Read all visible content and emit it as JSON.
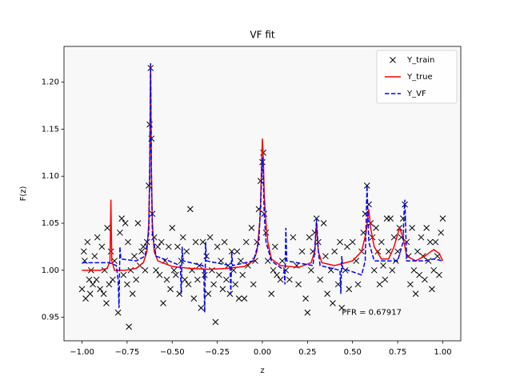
{
  "chart_data": {
    "type": "line",
    "title": "VF fit",
    "x_label": "z",
    "y_label": "F(z)",
    "annotation": "PFR = 0.67917",
    "annotation_pos": [
      0.44,
      0.955
    ],
    "xlim": [
      -1.1,
      1.1
    ],
    "ylim": [
      0.925,
      1.238
    ],
    "xticks": [
      {
        "value": -1,
        "label": "−1.00"
      },
      {
        "value": -0.75,
        "label": "−0.75"
      },
      {
        "value": -0.5,
        "label": "−0.50"
      },
      {
        "value": -0.25,
        "label": "−0.25"
      },
      {
        "value": 0,
        "label": "0.00"
      },
      {
        "value": 0.25,
        "label": "0.25"
      },
      {
        "value": 0.5,
        "label": "0.50"
      },
      {
        "value": 0.75,
        "label": "0.75"
      },
      {
        "value": 1,
        "label": "1.00"
      }
    ],
    "yticks": [
      {
        "value": 0.95,
        "label": "0.95"
      },
      {
        "value": 1,
        "label": "1.00"
      },
      {
        "value": 1.05,
        "label": "1.05"
      },
      {
        "value": 1.1,
        "label": "1.10"
      },
      {
        "value": 1.15,
        "label": "1.15"
      },
      {
        "value": 1.2,
        "label": "1.20"
      }
    ],
    "legend": "upper right",
    "background": "#f8f8f8",
    "series": [
      {
        "name": "Y_train",
        "style": "marker",
        "color": "#000000",
        "x": [
          -1.0,
          -0.99,
          -0.985,
          -0.98,
          -0.97,
          -0.96,
          -0.955,
          -0.95,
          -0.94,
          -0.93,
          -0.92,
          -0.915,
          -0.9,
          -0.89,
          -0.88,
          -0.875,
          -0.865,
          -0.86,
          -0.85,
          -0.84,
          -0.83,
          -0.82,
          -0.8,
          -0.79,
          -0.78,
          -0.77,
          -0.76,
          -0.75,
          -0.745,
          -0.74,
          -0.73,
          -0.72,
          -0.71,
          -0.7,
          -0.69,
          -0.68,
          -0.67,
          -0.66,
          -0.65,
          -0.64,
          -0.63,
          -0.625,
          -0.62,
          -0.615,
          -0.61,
          -0.6,
          -0.59,
          -0.58,
          -0.57,
          -0.56,
          -0.55,
          -0.54,
          -0.53,
          -0.52,
          -0.51,
          -0.5,
          -0.49,
          -0.48,
          -0.47,
          -0.46,
          -0.45,
          -0.44,
          -0.43,
          -0.42,
          -0.41,
          -0.4,
          -0.39,
          -0.38,
          -0.37,
          -0.36,
          -0.35,
          -0.34,
          -0.33,
          -0.32,
          -0.31,
          -0.3,
          -0.29,
          -0.28,
          -0.27,
          -0.26,
          -0.25,
          -0.24,
          -0.23,
          -0.22,
          -0.21,
          -0.2,
          -0.19,
          -0.18,
          -0.17,
          -0.16,
          -0.15,
          -0.14,
          -0.13,
          -0.12,
          -0.11,
          -0.1,
          -0.09,
          -0.08,
          -0.06,
          -0.05,
          -0.04,
          -0.03,
          -0.02,
          -0.01,
          0.0,
          0.005,
          0.01,
          0.02,
          0.03,
          0.05,
          0.06,
          0.07,
          0.08,
          0.1,
          0.11,
          0.13,
          0.15,
          0.17,
          0.19,
          0.2,
          0.22,
          0.24,
          0.25,
          0.26,
          0.27,
          0.28,
          0.29,
          0.3,
          0.31,
          0.32,
          0.34,
          0.35,
          0.36,
          0.38,
          0.39,
          0.4,
          0.42,
          0.43,
          0.44,
          0.46,
          0.47,
          0.48,
          0.5,
          0.52,
          0.53,
          0.55,
          0.56,
          0.57,
          0.58,
          0.59,
          0.6,
          0.61,
          0.62,
          0.63,
          0.64,
          0.65,
          0.66,
          0.67,
          0.68,
          0.69,
          0.7,
          0.71,
          0.72,
          0.73,
          0.74,
          0.75,
          0.76,
          0.77,
          0.78,
          0.79,
          0.8,
          0.81,
          0.82,
          0.83,
          0.84,
          0.85,
          0.86,
          0.87,
          0.88,
          0.89,
          0.9,
          0.91,
          0.92,
          0.93,
          0.94,
          0.95,
          0.96,
          0.97,
          0.98,
          0.99,
          1.0
        ],
        "values": [
          0.98,
          1.02,
          1.01,
          0.97,
          1.03,
          0.99,
          0.975,
          1.0,
          0.985,
          1.015,
          0.99,
          1.035,
          0.98,
          1.025,
          0.975,
          1.0,
          0.965,
          1.045,
          0.985,
          1.02,
          0.99,
          1.01,
          0.955,
          1.04,
          1.055,
          0.995,
          1.05,
          0.985,
          1.03,
          0.94,
          1.0,
          0.975,
          1.015,
          0.99,
          1.05,
          1.005,
          1.02,
          1.025,
          1.0,
          1.03,
          1.09,
          1.155,
          1.215,
          1.14,
          1.06,
          1.035,
          1.0,
          1.025,
          0.995,
          1.03,
          0.965,
          1.01,
          0.99,
          1.025,
          0.98,
          1.045,
          1.0,
          0.995,
          1.025,
          0.975,
          1.01,
          1.035,
          0.99,
          1.02,
          0.985,
          1.065,
          1.0,
          0.97,
          1.03,
          0.99,
          1.005,
          0.96,
          1.03,
          0.995,
          1.015,
          0.975,
          1.035,
          1.0,
          0.985,
          0.945,
          1.025,
          0.995,
          1.01,
          0.98,
          1.03,
          0.99,
          1.005,
          0.975,
          1.02,
          1.0,
          0.985,
          1.02,
          0.97,
          1.01,
          0.995,
          0.97,
          1.03,
          1.005,
          1.045,
          0.985,
          1.01,
          1.03,
          1.065,
          1.095,
          1.115,
          1.125,
          1.06,
          1.04,
          1.01,
          0.975,
          1.0,
          1.025,
          0.995,
          0.99,
          1.01,
          1.0,
          0.99,
          1.035,
          1.005,
          0.985,
          1.02,
          0.97,
          0.955,
          1.035,
          1.0,
          1.02,
          1.04,
          1.055,
          1.03,
          0.99,
          1.05,
          1.015,
          0.975,
          1.0,
          0.965,
          1.02,
          0.985,
          1.03,
          0.96,
          1.0,
          1.025,
          0.98,
          1.03,
          1.01,
          0.985,
          1.02,
          1.04,
          1.06,
          1.09,
          1.07,
          1.05,
          1.035,
          1.0,
          1.045,
          1.02,
          0.985,
          1.03,
          1.005,
          0.99,
          1.055,
          1.02,
          1.055,
          1.0,
          1.035,
          1.01,
          1.02,
          1.045,
          1.035,
          1.055,
          1.07,
          1.03,
          1.015,
          0.985,
          1.045,
          1.0,
          0.975,
          1.02,
          0.995,
          1.035,
          1.015,
          0.99,
          1.045,
          1.01,
          1.03,
          0.98,
          1.0,
          1.03,
          1.015,
          0.995,
          1.04,
          1.055
        ]
      },
      {
        "name": "Y_true",
        "style": "solid",
        "color": "#ff0000",
        "x": [
          -1.0,
          -0.9,
          -0.86,
          -0.845,
          -0.84,
          -0.835,
          -0.82,
          -0.76,
          -0.7,
          -0.66,
          -0.64,
          -0.63,
          -0.625,
          -0.62,
          -0.615,
          -0.61,
          -0.6,
          -0.58,
          -0.5,
          -0.4,
          -0.3,
          -0.2,
          -0.1,
          -0.05,
          -0.03,
          -0.015,
          -0.01,
          -0.005,
          0.0,
          0.005,
          0.01,
          0.02,
          0.03,
          0.05,
          0.1,
          0.2,
          0.27,
          0.29,
          0.3,
          0.31,
          0.33,
          0.4,
          0.5,
          0.55,
          0.575,
          0.59,
          0.6,
          0.62,
          0.66,
          0.7,
          0.73,
          0.76,
          0.78,
          0.8,
          0.85,
          0.9,
          0.95,
          0.98,
          1.0
        ],
        "values": [
          1.0,
          1.0,
          1.002,
          1.01,
          1.075,
          1.01,
          1.0,
          1.0,
          1.002,
          1.008,
          1.02,
          1.05,
          1.1,
          1.22,
          1.1,
          1.05,
          1.02,
          1.01,
          1.004,
          1.002,
          1.001,
          1.002,
          1.004,
          1.01,
          1.02,
          1.05,
          1.07,
          1.11,
          1.14,
          1.12,
          1.08,
          1.05,
          1.03,
          1.012,
          1.005,
          1.003,
          1.008,
          1.02,
          1.05,
          1.02,
          1.008,
          1.005,
          1.01,
          1.02,
          1.04,
          1.065,
          1.045,
          1.025,
          1.012,
          1.012,
          1.025,
          1.045,
          1.035,
          1.015,
          1.01,
          1.015,
          1.022,
          1.018,
          1.01
        ]
      },
      {
        "name": "Y_VF",
        "style": "dashed",
        "color": "#0000ff",
        "x": [
          -1.0,
          -0.85,
          -0.81,
          -0.8,
          -0.795,
          -0.79,
          -0.785,
          -0.7,
          -0.65,
          -0.63,
          -0.625,
          -0.62,
          -0.615,
          -0.61,
          -0.59,
          -0.52,
          -0.455,
          -0.45,
          -0.445,
          -0.44,
          -0.33,
          -0.325,
          -0.32,
          -0.315,
          -0.31,
          -0.18,
          -0.175,
          -0.17,
          -0.165,
          -0.05,
          -0.02,
          -0.01,
          0.0,
          0.005,
          0.01,
          0.02,
          0.05,
          0.12,
          0.125,
          0.13,
          0.135,
          0.28,
          0.29,
          0.3,
          0.31,
          0.32,
          0.43,
          0.435,
          0.44,
          0.445,
          0.55,
          0.57,
          0.575,
          0.58,
          0.585,
          0.59,
          0.62,
          0.75,
          0.78,
          0.785,
          0.79,
          0.795,
          0.8,
          0.9,
          0.95,
          1.0
        ],
        "values": [
          1.008,
          1.008,
          1.005,
          0.99,
          0.96,
          1.025,
          1.012,
          1.01,
          1.015,
          1.04,
          1.1,
          1.22,
          1.1,
          1.04,
          1.015,
          1.01,
          1.005,
          0.975,
          1.025,
          1.01,
          1.005,
          1.0,
          0.955,
          1.03,
          1.01,
          1.005,
          0.975,
          1.02,
          1.005,
          1.01,
          1.03,
          1.07,
          1.12,
          1.1,
          1.06,
          1.03,
          1.01,
          1.0,
          0.985,
          1.045,
          1.01,
          1.005,
          1.02,
          1.055,
          1.02,
          1.005,
          1.0,
          0.975,
          1.015,
          1.002,
          0.995,
          1.01,
          1.05,
          1.09,
          1.06,
          1.03,
          1.01,
          1.01,
          1.03,
          1.06,
          1.075,
          1.04,
          1.01,
          1.01,
          1.012,
          1.01
        ]
      }
    ]
  }
}
